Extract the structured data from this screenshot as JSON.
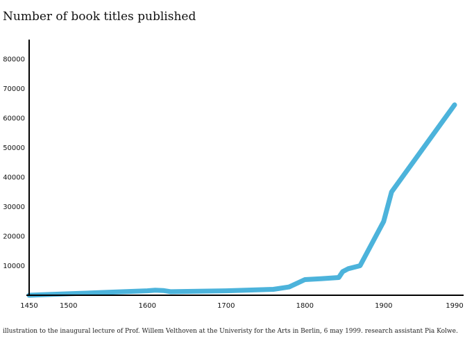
{
  "title": "Number of book titles published",
  "caption": "illustration to the inaugural lecture of Prof. Willem Velthoven at the Univeristy for the Arts in Berlin, 6 may 1999. research assistant Pia Kolwe.",
  "colors": {
    "line": "#4cb3db",
    "axis": "#000000",
    "text": "#111111"
  },
  "chart_data": {
    "type": "line",
    "title": "Number of book titles published",
    "xlabel": "",
    "ylabel": "",
    "xlim": [
      1450,
      1990
    ],
    "ylim": [
      0,
      85000
    ],
    "grid": false,
    "x_ticks": [
      1450,
      1500,
      1600,
      1700,
      1800,
      1900,
      1990
    ],
    "y_ticks": [
      10000,
      20000,
      30000,
      40000,
      50000,
      60000,
      70000,
      80000
    ],
    "series": [
      {
        "x": [
          1450,
          1470,
          1500,
          1550,
          1600,
          1610,
          1620,
          1630,
          1700,
          1760,
          1780,
          1800,
          1820,
          1843,
          1848,
          1855,
          1870,
          1890,
          1900,
          1910,
          1990
        ],
        "y": [
          0,
          200,
          500,
          1000,
          1500,
          1700,
          1600,
          1200,
          1500,
          2000,
          2800,
          5300,
          5600,
          6000,
          8000,
          9000,
          10000,
          20000,
          25000,
          35000,
          64500
        ]
      }
    ]
  }
}
